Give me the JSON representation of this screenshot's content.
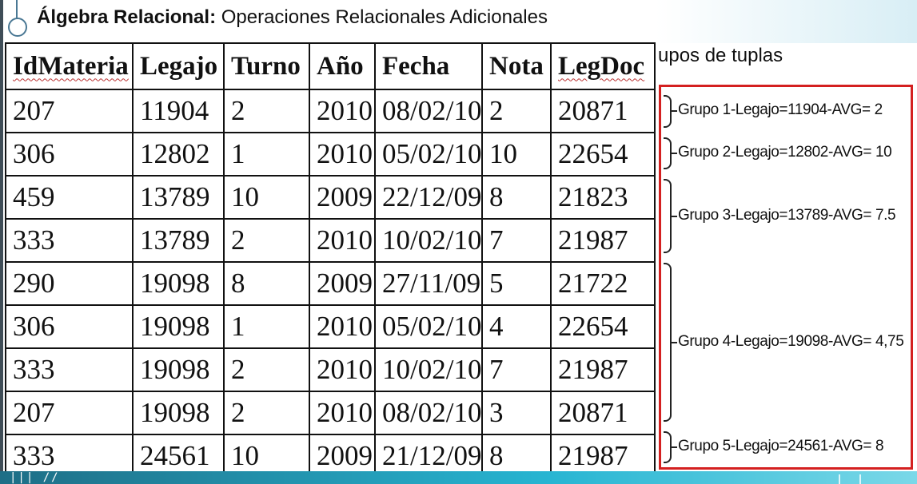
{
  "slide": {
    "title_bold": "Álgebra Relacional:",
    "title_rest": " Operaciones Relacionales Adicionales",
    "subtitle": "upos de tuplas",
    "band_marks": "|||  //"
  },
  "table": {
    "headers": [
      "IdMateria",
      "Legajo",
      "Turno",
      "Año",
      "Fecha",
      "Nota",
      "LegDoc"
    ],
    "rows": [
      [
        "207",
        "11904",
        "2",
        "2010",
        "08/02/10",
        "2",
        "20871"
      ],
      [
        "306",
        "12802",
        "1",
        "2010",
        "05/02/10",
        "10",
        "22654"
      ],
      [
        "459",
        "13789",
        "10",
        "2009",
        "22/12/09",
        "8",
        "21823"
      ],
      [
        "333",
        "13789",
        "2",
        "2010",
        "10/02/10",
        "7",
        "21987"
      ],
      [
        "290",
        "19098",
        "8",
        "2009",
        "27/11/09",
        "5",
        "21722"
      ],
      [
        "306",
        "19098",
        "1",
        "2010",
        "05/02/10",
        "4",
        "22654"
      ],
      [
        "333",
        "19098",
        "2",
        "2010",
        "10/02/10",
        "7",
        "21987"
      ],
      [
        "207",
        "19098",
        "2",
        "2010",
        "08/02/10",
        "3",
        "20871"
      ],
      [
        "333",
        "24561",
        "10",
        "2009",
        "21/12/09",
        "8",
        "21987"
      ]
    ]
  },
  "groups": [
    {
      "label": "Grupo 1-Legajo=11904-AVG= 2",
      "rows": 1
    },
    {
      "label": "Grupo 2-Legajo=12802-AVG= 10",
      "rows": 1
    },
    {
      "label": "Grupo 3-Legajo=13789-AVG= 7.5",
      "rows": 2
    },
    {
      "label": "Grupo 4-Legajo=19098-AVG= 4,75",
      "rows": 4
    },
    {
      "label": "Grupo 5-Legajo=24561-AVG= 8",
      "rows": 1
    }
  ]
}
